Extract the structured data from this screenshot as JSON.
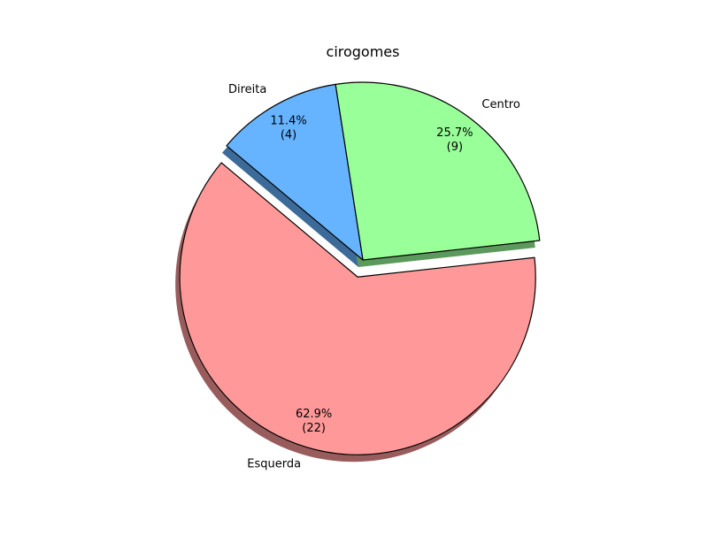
{
  "chart_data": {
    "type": "pie",
    "title": "cirogomes",
    "categories": [
      "Esquerda",
      "Centro",
      "Direita"
    ],
    "values": [
      22,
      9,
      4
    ],
    "percent_labels": [
      "62.9%",
      "25.7%",
      "11.4%"
    ],
    "count_labels": [
      "(22)",
      "(9)",
      "(4)"
    ],
    "colors": [
      "#ff9999",
      "#99ff99",
      "#66b3ff"
    ],
    "exploded": [
      true,
      false,
      false
    ],
    "shadow": true,
    "edge_color": "#000000",
    "start_angle_deg": 140,
    "direction": "counterclockwise"
  }
}
